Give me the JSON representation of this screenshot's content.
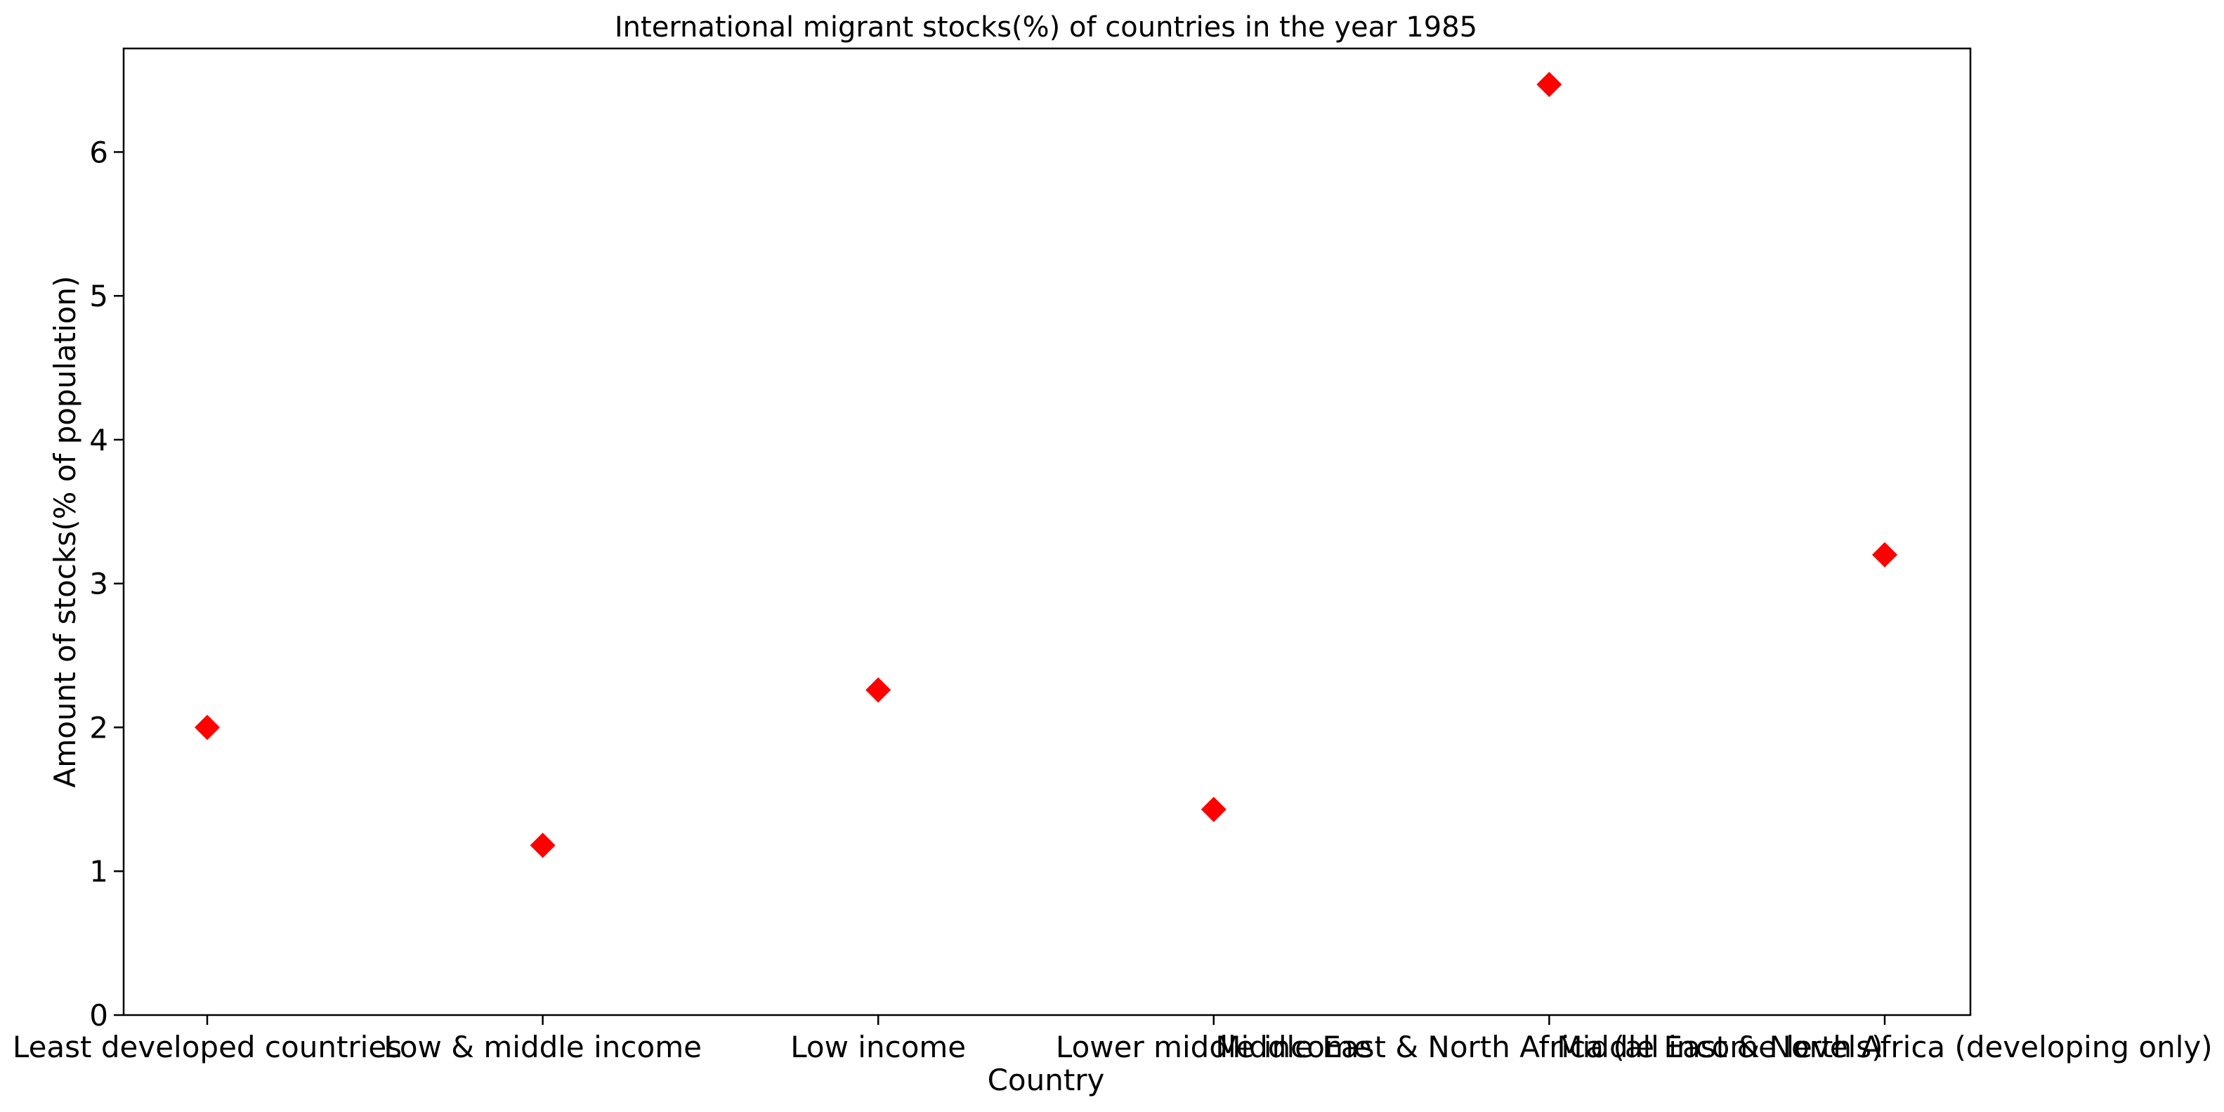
{
  "chart_data": {
    "type": "scatter",
    "title": "International migrant stocks(%) of countries in the year 1985",
    "xlabel": "Country",
    "ylabel": "Amount of stocks(% of population)",
    "categories": [
      "Least developed countries",
      "Low & middle income",
      "Low income",
      "Lower middle income",
      "Middle East & North Africa (all income levels)",
      "Middle East & North Africa (developing only)"
    ],
    "values": [
      2.0,
      1.18,
      2.26,
      1.43,
      6.47,
      3.2
    ],
    "ylim": [
      0,
      6.72
    ],
    "yticks": [
      "0",
      "1",
      "2",
      "3",
      "4",
      "5",
      "6"
    ],
    "grid": false,
    "marker": "diamond",
    "marker_color": "#ff0000"
  }
}
